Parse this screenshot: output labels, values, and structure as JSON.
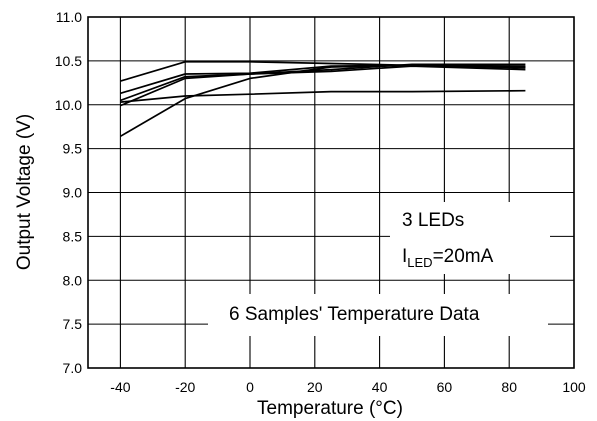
{
  "chart_data": {
    "type": "line",
    "xlabel": "Temperature (°C)",
    "ylabel": "Output Voltage (V)",
    "xlim": [
      -50,
      100
    ],
    "ylim": [
      7.0,
      11.0
    ],
    "xticks": [
      -40,
      -20,
      0,
      20,
      40,
      60,
      80,
      100
    ],
    "yticks": [
      7.0,
      7.5,
      8.0,
      8.5,
      9.0,
      9.5,
      10.0,
      10.5,
      11.0
    ],
    "xtick_labels": [
      "-40",
      "-20",
      "0",
      "20",
      "40",
      "60",
      "80",
      "100"
    ],
    "ytick_labels": [
      "7.0",
      "7.5",
      "8.0",
      "8.5",
      "9.0",
      "9.5",
      "10.0",
      "10.5",
      "11.0"
    ],
    "grid": true,
    "x": [
      -40,
      -20,
      0,
      25,
      50,
      85
    ],
    "series": [
      {
        "values": [
          10.27,
          10.49,
          10.49,
          10.47,
          10.45,
          10.44
        ]
      },
      {
        "values": [
          10.13,
          10.35,
          10.36,
          10.44,
          10.45,
          10.42
        ]
      },
      {
        "values": [
          10.05,
          10.32,
          10.35,
          10.4,
          10.46,
          10.46
        ]
      },
      {
        "values": [
          10.03,
          10.1,
          10.12,
          10.15,
          10.15,
          10.16
        ]
      },
      {
        "values": [
          9.99,
          10.3,
          10.35,
          10.38,
          10.44,
          10.4
        ]
      },
      {
        "values": [
          9.64,
          10.07,
          10.3,
          10.43,
          10.45,
          10.43
        ]
      }
    ],
    "annotations": {
      "leds": "3 LEDs",
      "current_prefix": "I",
      "current_sub": "LED",
      "current_value": "=20mA",
      "samples": "6 Samples' Temperature Data"
    }
  }
}
